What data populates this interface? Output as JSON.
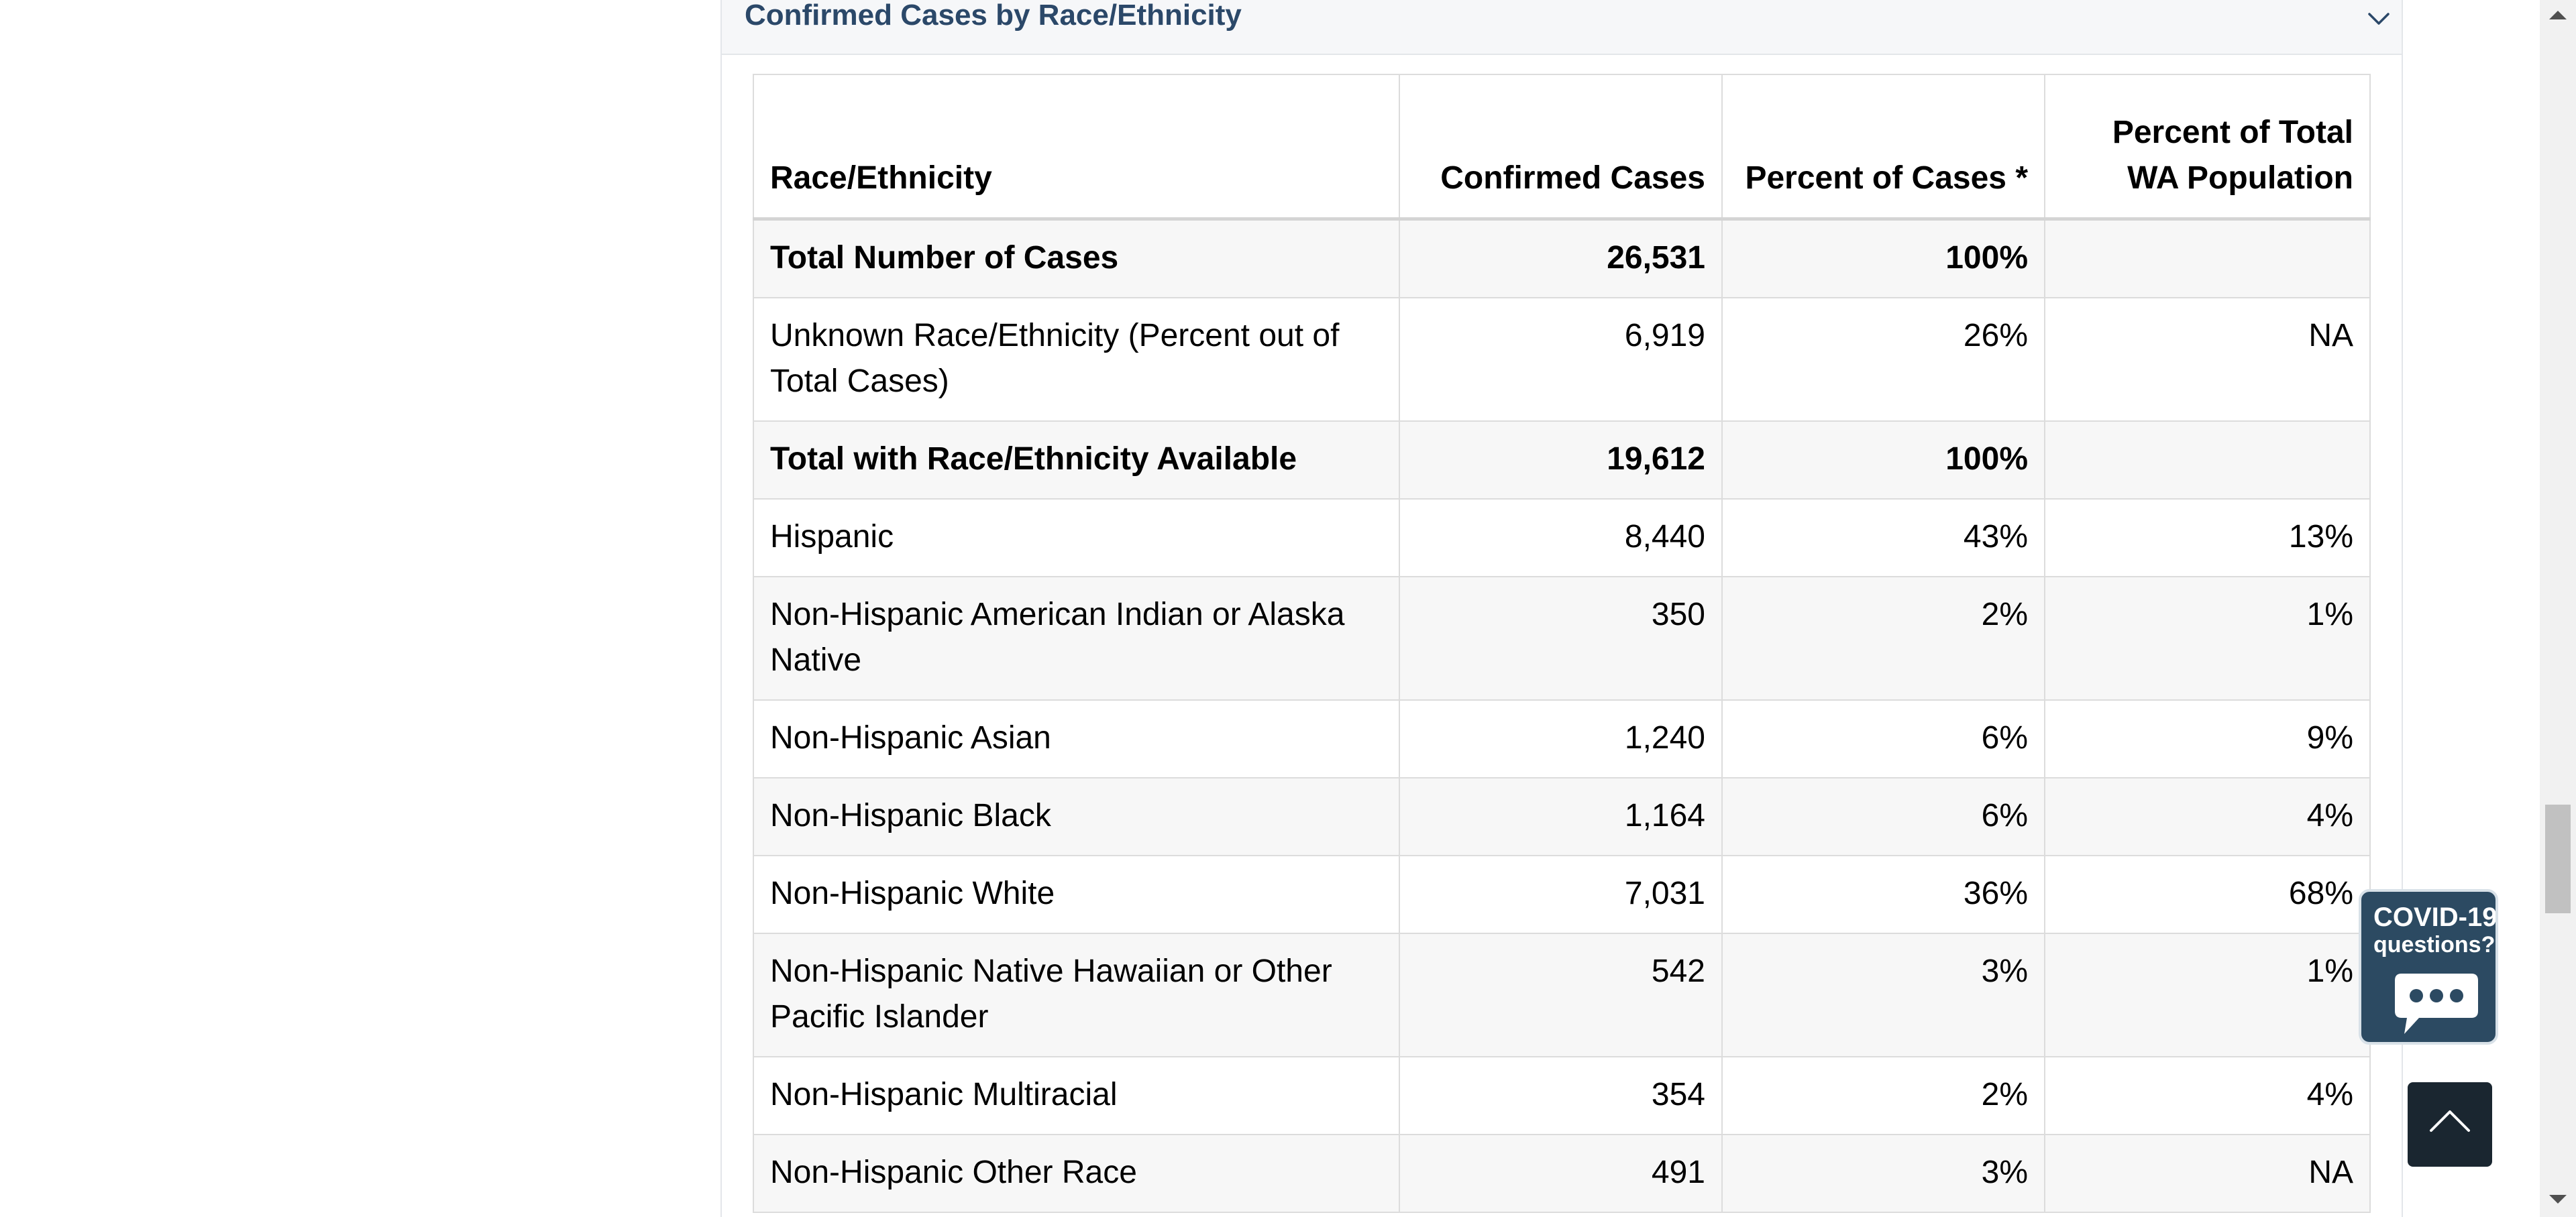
{
  "accordion": {
    "title": "Confirmed Cases by Race/Ethnicity"
  },
  "table": {
    "headers": {
      "race": "Race/Ethnicity",
      "cases": "Confirmed Cases",
      "percent_cases": "Percent of Cases *",
      "percent_pop_line1": "Percent of Total",
      "percent_pop_line2": "WA Population"
    },
    "rows": [
      {
        "race": "Total Number of Cases",
        "cases": "26,531",
        "percent_cases": "100%",
        "percent_pop": ""
      },
      {
        "race": "Unknown Race/Ethnicity (Percent out of Total Cases)",
        "cases": "6,919",
        "percent_cases": "26%",
        "percent_pop": "NA"
      },
      {
        "race": "Total with Race/Ethnicity Available",
        "cases": "19,612",
        "percent_cases": "100%",
        "percent_pop": ""
      },
      {
        "race": "Hispanic",
        "cases": "8,440",
        "percent_cases": "43%",
        "percent_pop": "13%"
      },
      {
        "race": "Non-Hispanic American Indian or Alaska Native",
        "cases": "350",
        "percent_cases": "2%",
        "percent_pop": "1%"
      },
      {
        "race": "Non-Hispanic Asian",
        "cases": "1,240",
        "percent_cases": "6%",
        "percent_pop": "9%"
      },
      {
        "race": "Non-Hispanic Black",
        "cases": "1,164",
        "percent_cases": "6%",
        "percent_pop": "4%"
      },
      {
        "race": "Non-Hispanic White",
        "cases": "7,031",
        "percent_cases": "36%",
        "percent_pop": "68%"
      },
      {
        "race": "Non-Hispanic Native Hawaiian or Other Pacific Islander",
        "cases": "542",
        "percent_cases": "3%",
        "percent_pop": "1%"
      },
      {
        "race": "Non-Hispanic Multiracial",
        "cases": "354",
        "percent_cases": "2%",
        "percent_pop": "4%"
      },
      {
        "race": "Non-Hispanic Other Race",
        "cases": "491",
        "percent_cases": "3%",
        "percent_pop": "NA"
      }
    ]
  },
  "chat_widget": {
    "line1": "COVID-19",
    "line2": "questions?"
  },
  "colors": {
    "accent": "#2b4869",
    "chat_bg": "#2c4a62",
    "back_to_top_bg": "#1a2630"
  },
  "icons": {
    "chevron": "chevron-down-icon",
    "chat": "chat-bubble-icon",
    "back_to_top": "arrow-up-icon"
  }
}
